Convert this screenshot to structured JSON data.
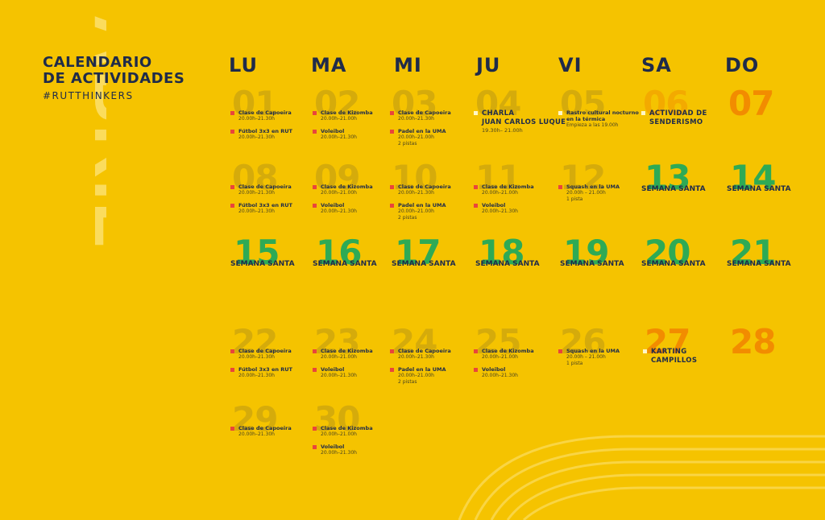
{
  "header": {
    "title_line1": "CALENDARIO",
    "title_line2": "DE ACTIVIDADES",
    "hashtag": "#RUTTHINKERS",
    "month": "ABRIL"
  },
  "colors": {
    "background": "#f5c300",
    "text": "#1f2b4a",
    "weekend": "#f28c00",
    "holiday": "#2eaa55",
    "bullet": "#e9453b"
  },
  "days": [
    "LU",
    "MA",
    "MI",
    "JU",
    "VI",
    "SA",
    "DO"
  ],
  "cells": {
    "d01": {
      "num": "01",
      "e1t": "Clase de Capoeira",
      "e1s": "20.00h–21.30h",
      "e2t": "Fútbol 3x3 en RUT",
      "e2s": "20.00h–21.30h"
    },
    "d02": {
      "num": "02",
      "e1t": "Clase de Kizomba",
      "e1s": "20.00h–21.00h",
      "e2t": "Voleibol",
      "e2s": "20.00h–21.30h"
    },
    "d03": {
      "num": "03",
      "e1t": "Clase de Capoeira",
      "e1s": "20.00h–21.30h",
      "e2t": "Padel en la UMA",
      "e2s": "20.00h–21.00h",
      "e2x": "2 pistas"
    },
    "d04": {
      "num": "04",
      "e1t": "CHARLA",
      "e1t2": "JUAN CARLOS LUQUE",
      "e1s": "19.30h– 21.00h"
    },
    "d05": {
      "num": "05",
      "e1t": "Rastro cultural nocturno",
      "e1t2": "en la térmica",
      "e1s": "Empieza a las 19.00h"
    },
    "d06": {
      "num": "06",
      "e1t": "ACTIVIDAD DE",
      "e1t2": "SENDERISMO"
    },
    "d07": {
      "num": "07"
    },
    "d08": {
      "num": "08",
      "e1t": "Clase de Capoeira",
      "e1s": "20.00h–21.30h",
      "e2t": "Fútbol 3x3 en RUT",
      "e2s": "20.00h–21.30h"
    },
    "d09": {
      "num": "09",
      "e1t": "Clase de Kizomba",
      "e1s": "20.00h–21.00h",
      "e2t": "Voleibol",
      "e2s": "20.00h–21.30h"
    },
    "d10": {
      "num": "10",
      "e1t": "Clase de Capoeira",
      "e1s": "20.00h–21.30h",
      "e2t": "Padel en la UMA",
      "e2s": "20.00h–21.00h",
      "e2x": "2 pistas"
    },
    "d11": {
      "num": "11",
      "e1t": "Clase de Kizomba",
      "e1s": "20.00h–21.00h",
      "e2t": "Voleibol",
      "e2s": "20.00h–21.30h"
    },
    "d12": {
      "num": "12",
      "e1t": "Squash en la UMA",
      "e1s": "20.00h – 21.00h",
      "e1x": "1 pista"
    },
    "d13": {
      "num": "13",
      "hol": "SEMANA SANTA"
    },
    "d14": {
      "num": "14",
      "hol": "SEMANA SANTA"
    },
    "d15": {
      "num": "15",
      "hol": "SEMANA SANTA"
    },
    "d16": {
      "num": "16",
      "hol": "SEMANA SANTA"
    },
    "d17": {
      "num": "17",
      "hol": "SEMANA SANTA"
    },
    "d18": {
      "num": "18",
      "hol": "SEMANA SANTA"
    },
    "d19": {
      "num": "19",
      "hol": "SEMANA SANTA"
    },
    "d20": {
      "num": "20",
      "hol": "SEMANA SANTA"
    },
    "d21": {
      "num": "21",
      "hol": "SEMANA SANTA"
    },
    "d22": {
      "num": "22",
      "e1t": "Clase de Capoeira",
      "e1s": "20.00h–21.30h",
      "e2t": "Fútbol 3x3 en RUT",
      "e2s": "20.00h–21.30h"
    },
    "d23": {
      "num": "23",
      "e1t": "Clase de Kizomba",
      "e1s": "20.00h–21.00h",
      "e2t": "Voleibol",
      "e2s": "20.00h–21.30h"
    },
    "d24": {
      "num": "24",
      "e1t": "Clase de Capoeira",
      "e1s": "20.00h–21.30h",
      "e2t": "Padel en la UMA",
      "e2s": "20.00h–21.00h",
      "e2x": "2 pistas"
    },
    "d25": {
      "num": "25",
      "e1t": "Clase de Kizomba",
      "e1s": "20.00h–21.00h",
      "e2t": "Voleibol",
      "e2s": "20.00h–21.30h"
    },
    "d26": {
      "num": "26",
      "e1t": "Squash en la UMA",
      "e1s": "20.00h – 21.00h",
      "e1x": "1 pista"
    },
    "d27": {
      "num": "27",
      "e1t": "KARTING",
      "e1t2": "CAMPILLOS"
    },
    "d28": {
      "num": "28"
    },
    "d29": {
      "num": "29",
      "e1t": "Clase de Capoeira",
      "e1s": "20.00h–21.30h"
    },
    "d30": {
      "num": "30",
      "e1t": "Clase de Kizomba",
      "e1s": "20.00h–21.00h",
      "e2t": "Voleibol",
      "e2s": "20.00h–21.30h"
    }
  }
}
